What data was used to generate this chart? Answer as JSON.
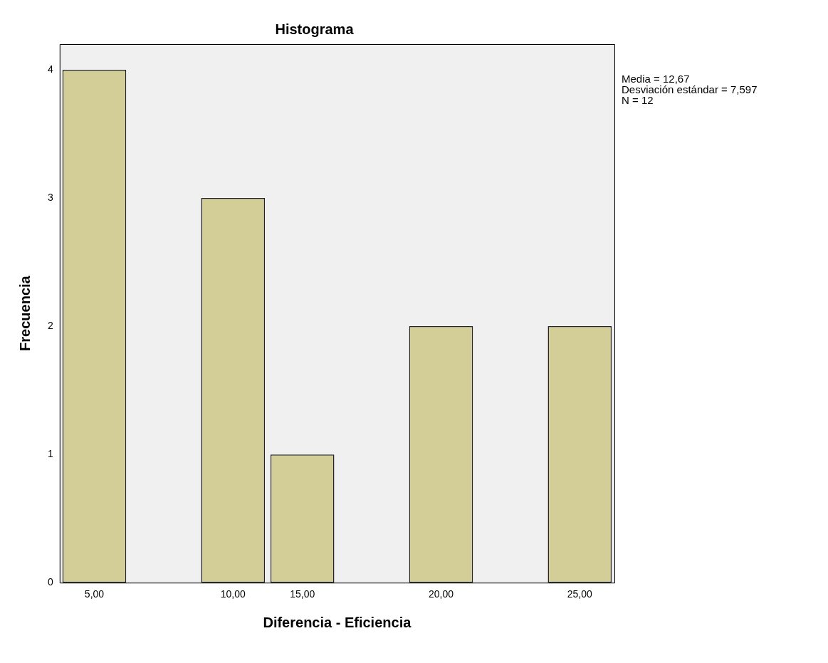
{
  "chart_data": {
    "type": "bar",
    "title": "Histograma",
    "xlabel": "Diferencia - Eficiencia",
    "ylabel": "Frecuencia",
    "categories": [
      "5,00",
      null,
      "10,00",
      "15,00",
      null,
      "20,00",
      null,
      "25,00"
    ],
    "values": [
      4,
      0,
      3,
      1,
      0,
      2,
      0,
      2
    ],
    "color": "#d3ce98",
    "ylim": [
      0,
      4.2
    ],
    "yticks": [
      0,
      1,
      2,
      3,
      4
    ],
    "annotations": [
      "Media = 12,67",
      "Desviación estándar = 7,597",
      "N = 12"
    ]
  }
}
